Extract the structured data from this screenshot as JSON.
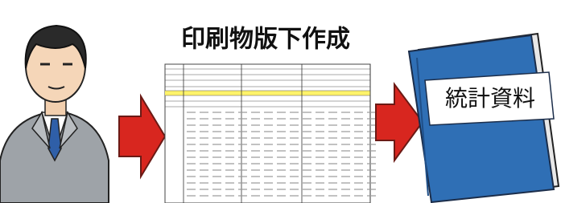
{
  "diagram": {
    "title": "印刷物版下作成",
    "book_label": "統計資料"
  }
}
